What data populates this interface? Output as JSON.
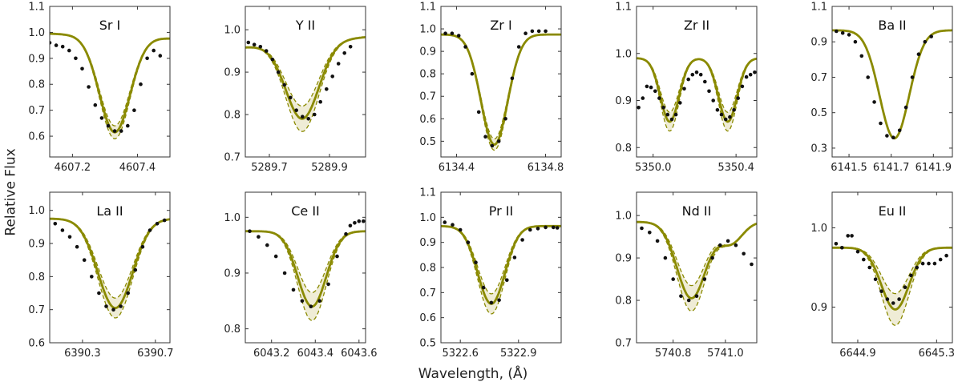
{
  "figure": {
    "ylabel": "Relative Flux",
    "xlabel": "Wavelength, (Å)",
    "model_color": "#8a8a00",
    "band_color": "#efecd6",
    "point_color": "#111111"
  },
  "chart_data": [
    {
      "type": "line",
      "title": "Sr I",
      "xlim": [
        4607.13,
        4607.5
      ],
      "ylim": [
        0.52,
        1.1
      ],
      "yticks": [
        0.6,
        0.7,
        0.8,
        0.9,
        1.0,
        1.1
      ],
      "ytick_labels": [
        "0.6",
        "0.7",
        "0.8",
        "0.9",
        "1.0",
        "1.1"
      ],
      "xticks": [
        4607.2,
        4607.4
      ],
      "xtick_labels": [
        "4607.2",
        "4607.4"
      ],
      "model": {
        "type": "gauss",
        "center": 4607.33,
        "sigma": 0.047,
        "depth": 0.37,
        "cont": 0.985,
        "spread": 0.025,
        "slope": -0.05
      },
      "observed": {
        "x": [
          4607.13,
          4607.15,
          4607.17,
          4607.19,
          4607.21,
          4607.23,
          4607.25,
          4607.27,
          4607.29,
          4607.31,
          4607.33,
          4607.35,
          4607.37,
          4607.39,
          4607.41,
          4607.43,
          4607.45,
          4607.47
        ],
        "y": [
          0.96,
          0.95,
          0.945,
          0.93,
          0.9,
          0.86,
          0.79,
          0.72,
          0.67,
          0.64,
          0.62,
          0.62,
          0.64,
          0.7,
          0.8,
          0.9,
          0.93,
          0.91
        ]
      }
    },
    {
      "type": "line",
      "title": "Y II",
      "xlim": [
        5289.62,
        5290.02
      ],
      "ylim": [
        0.7,
        1.055
      ],
      "yticks": [
        0.7,
        0.8,
        0.9,
        1.0
      ],
      "ytick_labels": [
        "0.7",
        "0.8",
        "0.9",
        "1.0"
      ],
      "xticks": [
        5289.7,
        5289.9
      ],
      "xtick_labels": [
        "5289.7",
        "5289.9"
      ],
      "model": {
        "type": "gauss",
        "center": 5289.81,
        "sigma": 0.055,
        "depth": 0.18,
        "cont": 0.97,
        "spread": 0.03,
        "slope": 0.06
      },
      "observed": {
        "x": [
          5289.63,
          5289.65,
          5289.67,
          5289.69,
          5289.71,
          5289.73,
          5289.75,
          5289.77,
          5289.79,
          5289.81,
          5289.83,
          5289.85,
          5289.87,
          5289.89,
          5289.91,
          5289.93,
          5289.95,
          5289.97
        ],
        "y": [
          0.97,
          0.965,
          0.96,
          0.95,
          0.93,
          0.9,
          0.87,
          0.84,
          0.81,
          0.795,
          0.79,
          0.8,
          0.83,
          0.86,
          0.89,
          0.92,
          0.945,
          0.96
        ]
      }
    },
    {
      "type": "line",
      "title": "Zr I",
      "xlim": [
        6134.33,
        6134.87
      ],
      "ylim": [
        0.43,
        1.1
      ],
      "yticks": [
        0.5,
        0.6,
        0.7,
        0.8,
        0.9,
        1.0,
        1.1
      ],
      "ytick_labels": [
        "0.5",
        "0.6",
        "0.7",
        "0.8",
        "0.9",
        "1.0",
        "1.1"
      ],
      "xticks": [
        6134.4,
        6134.8
      ],
      "xtick_labels": [
        "6134.4",
        "6134.8"
      ],
      "model": {
        "type": "gauss",
        "center": 6134.57,
        "sigma": 0.06,
        "depth": 0.49,
        "cont": 0.975,
        "spread": 0.025,
        "slope": 0.0
      },
      "observed": {
        "x": [
          6134.35,
          6134.38,
          6134.41,
          6134.44,
          6134.47,
          6134.5,
          6134.53,
          6134.56,
          6134.59,
          6134.62,
          6134.65,
          6134.68,
          6134.71,
          6134.74,
          6134.77,
          6134.8
        ],
        "y": [
          0.98,
          0.98,
          0.97,
          0.92,
          0.8,
          0.63,
          0.52,
          0.48,
          0.5,
          0.6,
          0.78,
          0.92,
          0.98,
          0.99,
          0.99,
          0.99
        ]
      }
    },
    {
      "type": "line",
      "title": "Zr II",
      "xlim": [
        5349.92,
        5350.5
      ],
      "ylim": [
        0.78,
        1.1
      ],
      "yticks": [
        0.8,
        0.9,
        1.0,
        1.1
      ],
      "ytick_labels": [
        "0.8",
        "0.9",
        "1.0",
        "1.1"
      ],
      "xticks": [
        5350.0,
        5350.4
      ],
      "xtick_labels": [
        "5350.0",
        "5350.4"
      ],
      "model": {
        "type": "double",
        "centers": [
          5350.08,
          5350.36
        ],
        "sigma": 0.045,
        "depth": 0.135,
        "cont": 0.99,
        "spread": 0.02,
        "slope": 0.0
      },
      "observed": {
        "x": [
          5349.93,
          5349.95,
          5349.97,
          5349.99,
          5350.01,
          5350.03,
          5350.05,
          5350.07,
          5350.09,
          5350.11,
          5350.13,
          5350.15,
          5350.17,
          5350.19,
          5350.21,
          5350.23,
          5350.25,
          5350.27,
          5350.29,
          5350.31,
          5350.33,
          5350.35,
          5350.37,
          5350.39,
          5350.41,
          5350.43,
          5350.45,
          5350.47,
          5350.49
        ],
        "y": [
          0.885,
          0.905,
          0.93,
          0.928,
          0.92,
          0.905,
          0.885,
          0.87,
          0.86,
          0.87,
          0.895,
          0.925,
          0.945,
          0.955,
          0.96,
          0.955,
          0.94,
          0.92,
          0.9,
          0.88,
          0.87,
          0.86,
          0.865,
          0.88,
          0.905,
          0.93,
          0.95,
          0.955,
          0.96
        ]
      }
    },
    {
      "type": "line",
      "title": "Ba II",
      "xlim": [
        6141.42,
        6141.99
      ],
      "ylim": [
        0.25,
        1.1
      ],
      "yticks": [
        0.3,
        0.5,
        0.7,
        0.9,
        1.1
      ],
      "ytick_labels": [
        "0.3",
        "0.5",
        "0.7",
        "0.9",
        "1.1"
      ],
      "xticks": [
        6141.5,
        6141.7,
        6141.9
      ],
      "xtick_labels": [
        "6141.5",
        "6141.7",
        "6141.9"
      ],
      "model": {
        "type": "gauss",
        "center": 6141.715,
        "sigma": 0.07,
        "depth": 0.61,
        "cont": 0.965,
        "spread": 0.0,
        "slope": 0.0
      },
      "observed": {
        "x": [
          6141.44,
          6141.47,
          6141.5,
          6141.53,
          6141.56,
          6141.59,
          6141.62,
          6141.65,
          6141.68,
          6141.71,
          6141.74,
          6141.77,
          6141.8,
          6141.83,
          6141.86,
          6141.89
        ],
        "y": [
          0.96,
          0.95,
          0.94,
          0.9,
          0.82,
          0.7,
          0.56,
          0.44,
          0.37,
          0.36,
          0.4,
          0.53,
          0.7,
          0.83,
          0.9,
          0.93
        ]
      }
    },
    {
      "type": "line",
      "title": "La II",
      "xlim": [
        6390.12,
        6390.78
      ],
      "ylim": [
        0.6,
        1.055
      ],
      "yticks": [
        0.6,
        0.7,
        0.8,
        0.9,
        1.0
      ],
      "ytick_labels": [
        "0.6",
        "0.7",
        "0.8",
        "0.9",
        "1.0"
      ],
      "xticks": [
        6390.3,
        6390.7
      ],
      "xtick_labels": [
        "6390.3",
        "6390.7"
      ],
      "model": {
        "type": "gauss",
        "center": 6390.48,
        "sigma": 0.095,
        "depth": 0.27,
        "cont": 0.975,
        "spread": 0.03,
        "slope": 0.0
      },
      "observed": {
        "x": [
          6390.15,
          6390.19,
          6390.23,
          6390.27,
          6390.31,
          6390.35,
          6390.39,
          6390.43,
          6390.47,
          6390.51,
          6390.55,
          6390.59,
          6390.63,
          6390.67,
          6390.71,
          6390.75
        ],
        "y": [
          0.96,
          0.94,
          0.92,
          0.89,
          0.85,
          0.8,
          0.75,
          0.71,
          0.7,
          0.71,
          0.75,
          0.82,
          0.89,
          0.94,
          0.96,
          0.97
        ]
      }
    },
    {
      "type": "line",
      "title": "Ce II",
      "xlim": [
        6043.08,
        6043.63
      ],
      "ylim": [
        0.775,
        1.045
      ],
      "yticks": [
        0.8,
        0.9,
        1.0
      ],
      "ytick_labels": [
        "0.8",
        "0.9",
        "1.0"
      ],
      "xticks": [
        6043.2,
        6043.4,
        6043.6
      ],
      "xtick_labels": [
        "6043.2",
        "6043.4",
        "6043.6"
      ],
      "model": {
        "type": "gauss",
        "center": 6043.385,
        "sigma": 0.065,
        "depth": 0.135,
        "cont": 0.975,
        "spread": 0.025,
        "slope": 0.0
      },
      "observed": {
        "x": [
          6043.1,
          6043.14,
          6043.18,
          6043.22,
          6043.26,
          6043.3,
          6043.34,
          6043.38,
          6043.42,
          6043.46,
          6043.5,
          6043.54,
          6043.56,
          6043.58,
          6043.6,
          6043.62
        ],
        "y": [
          0.975,
          0.965,
          0.95,
          0.93,
          0.9,
          0.87,
          0.85,
          0.84,
          0.85,
          0.88,
          0.93,
          0.97,
          0.985,
          0.99,
          0.993,
          0.993
        ]
      }
    },
    {
      "type": "line",
      "title": "Pr II",
      "xlim": [
        5322.5,
        5323.12
      ],
      "ylim": [
        0.5,
        1.1
      ],
      "yticks": [
        0.5,
        0.6,
        0.7,
        0.8,
        0.9,
        1.0,
        1.1
      ],
      "ytick_labels": [
        "0.5",
        "0.6",
        "0.7",
        "0.8",
        "0.9",
        "1.0",
        "1.1"
      ],
      "xticks": [
        5322.6,
        5322.9
      ],
      "xtick_labels": [
        "5322.6",
        "5322.9"
      ],
      "model": {
        "type": "gauss",
        "center": 5322.76,
        "sigma": 0.07,
        "depth": 0.31,
        "cont": 0.965,
        "spread": 0.04,
        "slope": 0.0
      },
      "observed": {
        "x": [
          5322.52,
          5322.56,
          5322.6,
          5322.64,
          5322.68,
          5322.72,
          5322.76,
          5322.8,
          5322.84,
          5322.88,
          5322.92,
          5322.96,
          5323.0,
          5323.04,
          5323.08,
          5323.1
        ],
        "y": [
          0.98,
          0.97,
          0.95,
          0.9,
          0.82,
          0.72,
          0.66,
          0.67,
          0.75,
          0.84,
          0.91,
          0.95,
          0.955,
          0.96,
          0.96,
          0.958
        ]
      }
    },
    {
      "type": "line",
      "title": "Nd II",
      "xlim": [
        5740.66,
        5741.12
      ],
      "ylim": [
        0.7,
        1.055
      ],
      "yticks": [
        0.7,
        0.8,
        0.9,
        1.0
      ],
      "ytick_labels": [
        "0.7",
        "0.8",
        "0.9",
        "1.0"
      ],
      "xticks": [
        5740.8,
        5741.0
      ],
      "xtick_labels": [
        "5740.8",
        "5741.0"
      ],
      "model": {
        "type": "nd",
        "center": 5740.87,
        "sigma": 0.055,
        "depth": 0.18,
        "cont": 0.985,
        "spread": 0.03,
        "bump_center": 5741.02,
        "bump_sigma": 0.045,
        "bump_depth": 0.05
      },
      "observed": {
        "x": [
          5740.68,
          5740.71,
          5740.74,
          5740.77,
          5740.8,
          5740.83,
          5740.86,
          5740.89,
          5740.92,
          5740.95,
          5740.98,
          5741.01,
          5741.04,
          5741.07,
          5741.1
        ],
        "y": [
          0.97,
          0.96,
          0.94,
          0.9,
          0.85,
          0.81,
          0.8,
          0.81,
          0.85,
          0.9,
          0.93,
          0.94,
          0.93,
          0.91,
          0.885
        ]
      }
    },
    {
      "type": "line",
      "title": "Eu II",
      "xlim": [
        6644.77,
        6645.38
      ],
      "ylim": [
        0.855,
        1.045
      ],
      "yticks": [
        0.9,
        1.0
      ],
      "ytick_labels": [
        "0.9",
        "1.0"
      ],
      "xticks": [
        6644.9,
        6645.3
      ],
      "xtick_labels": [
        "6644.9",
        "6645.3"
      ],
      "model": {
        "type": "gauss",
        "center": 6645.09,
        "sigma": 0.07,
        "depth": 0.078,
        "cont": 0.975,
        "spread": 0.02,
        "slope": 0.0
      },
      "observed": {
        "x": [
          6644.79,
          6644.82,
          6644.85,
          6644.87,
          6644.9,
          6644.93,
          6644.96,
          6644.99,
          6645.02,
          6645.05,
          6645.08,
          6645.11,
          6645.14,
          6645.17,
          6645.2,
          6645.23,
          6645.26,
          6645.29,
          6645.32,
          6645.35
        ],
        "y": [
          0.98,
          0.975,
          0.99,
          0.99,
          0.97,
          0.96,
          0.95,
          0.935,
          0.92,
          0.91,
          0.905,
          0.91,
          0.925,
          0.94,
          0.95,
          0.955,
          0.955,
          0.955,
          0.96,
          0.965
        ]
      }
    }
  ]
}
